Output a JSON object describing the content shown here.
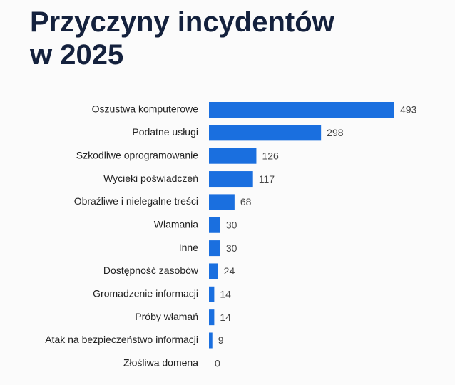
{
  "chart_data": {
    "type": "bar",
    "orientation": "horizontal",
    "title": "Przyczyny incydentów w 2025",
    "categories": [
      "Oszustwa komputerowe",
      "Podatne usługi",
      "Szkodliwe oprogramowanie",
      "Wycieki poświadczeń",
      "Obraźliwe i nielegalne treści",
      "Włamania",
      "Inne",
      "Dostępność zasobów",
      "Gromadzenie informacji",
      "Próby włamań",
      "Atak na bezpieczeństwo informacji",
      "Złośliwa domena"
    ],
    "values": [
      493,
      298,
      126,
      117,
      68,
      30,
      30,
      24,
      14,
      14,
      9,
      0
    ],
    "color": "#1a6fdf"
  }
}
